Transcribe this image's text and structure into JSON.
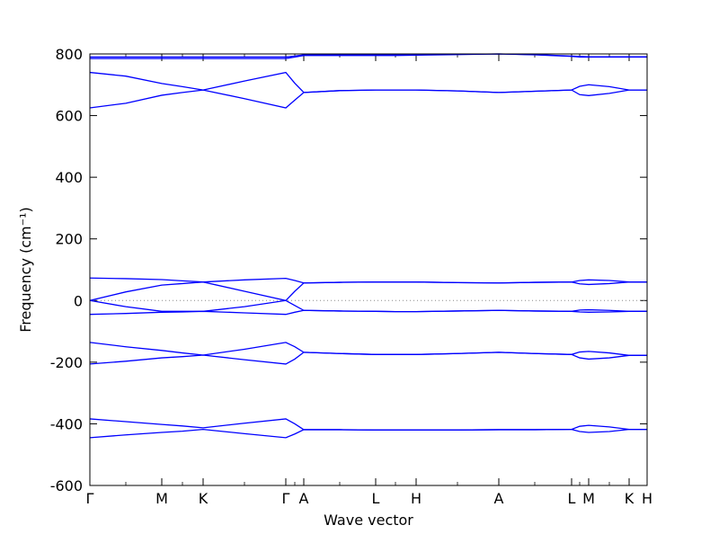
{
  "chart_data": {
    "type": "line",
    "x_label": "Wave vector",
    "y_label": "Frequency (cm⁻¹)",
    "x": [
      0,
      40,
      80,
      103,
      126,
      172,
      218,
      228,
      238,
      278,
      318,
      340,
      363,
      409,
      455,
      495,
      536,
      545,
      555,
      578,
      600,
      620
    ],
    "xlim": [
      0,
      620
    ],
    "xticks": [
      {
        "value": 0,
        "label": "Γ"
      },
      {
        "value": 80,
        "label": "M"
      },
      {
        "value": 126,
        "label": "K"
      },
      {
        "value": 218,
        "label": "Γ"
      },
      {
        "value": 238,
        "label": "A"
      },
      {
        "value": 318,
        "label": "L"
      },
      {
        "value": 363,
        "label": "H"
      },
      {
        "value": 455,
        "label": "A"
      },
      {
        "value": 536,
        "label": "L"
      },
      {
        "value": 555,
        "label": "M"
      },
      {
        "value": 600,
        "label": "K"
      },
      {
        "value": 620,
        "label": "H"
      }
    ],
    "ylim": [
      -600,
      800
    ],
    "yticks": [
      -600,
      -400,
      -200,
      0,
      200,
      400,
      600,
      800
    ],
    "zero_line": true,
    "series": [
      {
        "color": "#0000ff",
        "values": [
          785,
          785,
          785,
          785,
          785,
          785,
          785,
          790,
          795,
          795,
          795,
          795,
          796,
          798,
          800,
          797,
          792,
          790,
          790,
          790,
          790,
          790
        ]
      },
      {
        "color": "#0000ff",
        "values": [
          790,
          790,
          790,
          790,
          790,
          790,
          790,
          793,
          797,
          797,
          797,
          797,
          797,
          799,
          800,
          798,
          793,
          792,
          791,
          791,
          791,
          791
        ]
      },
      {
        "color": "#0000ff",
        "values": [
          740,
          728,
          704,
          694,
          683,
          712,
          740,
          705,
          675,
          681,
          683,
          683,
          683,
          680,
          675,
          679,
          683,
          695,
          700,
          694,
          683,
          683
        ]
      },
      {
        "color": "#0000ff",
        "values": [
          625,
          640,
          666,
          675,
          683,
          655,
          625,
          650,
          675,
          681,
          683,
          683,
          683,
          680,
          675,
          679,
          683,
          668,
          665,
          672,
          683,
          683
        ]
      },
      {
        "color": "#0000ff",
        "values": [
          73,
          71,
          68,
          64,
          60,
          67,
          72,
          65,
          57,
          59,
          60,
          60,
          60,
          58,
          57,
          59,
          60,
          65,
          67,
          65,
          60,
          60
        ]
      },
      {
        "color": "#0000ff",
        "values": [
          0,
          28,
          50,
          55,
          60,
          30,
          0,
          30,
          57,
          59,
          60,
          60,
          60,
          58,
          57,
          59,
          60,
          54,
          52,
          55,
          60,
          60
        ]
      },
      {
        "color": "#0000ff",
        "values": [
          0,
          -20,
          -35,
          -35,
          -35,
          -20,
          0,
          -16,
          -32,
          -34,
          -35,
          -36,
          -36,
          -34,
          -32,
          -34,
          -35,
          -31,
          -30,
          -32,
          -35,
          -35
        ]
      },
      {
        "color": "#0000ff",
        "values": [
          -45,
          -42,
          -38,
          -37,
          -35,
          -40,
          -45,
          -38,
          -32,
          -34,
          -35,
          -36,
          -36,
          -34,
          -32,
          -34,
          -35,
          -37,
          -38,
          -37,
          -35,
          -35
        ]
      },
      {
        "color": "#0000ff",
        "values": [
          -136,
          -150,
          -162,
          -170,
          -177,
          -158,
          -136,
          -150,
          -168,
          -172,
          -175,
          -175,
          -175,
          -172,
          -168,
          -172,
          -175,
          -167,
          -165,
          -170,
          -178,
          -178
        ]
      },
      {
        "color": "#0000ff",
        "values": [
          -206,
          -197,
          -186,
          -182,
          -177,
          -192,
          -206,
          -190,
          -168,
          -172,
          -175,
          -175,
          -175,
          -172,
          -168,
          -172,
          -175,
          -186,
          -190,
          -186,
          -178,
          -178
        ]
      },
      {
        "color": "#0000ff",
        "values": [
          -384,
          -393,
          -402,
          -407,
          -413,
          -398,
          -384,
          -400,
          -419,
          -419,
          -420,
          -420,
          -420,
          -420,
          -419,
          -419,
          -418,
          -408,
          -405,
          -410,
          -418,
          -418
        ]
      },
      {
        "color": "#0000ff",
        "values": [
          -445,
          -436,
          -428,
          -424,
          -418,
          -432,
          -445,
          -433,
          -419,
          -419,
          -420,
          -420,
          -420,
          -420,
          -419,
          -419,
          -418,
          -425,
          -428,
          -425,
          -418,
          -418
        ]
      }
    ]
  }
}
